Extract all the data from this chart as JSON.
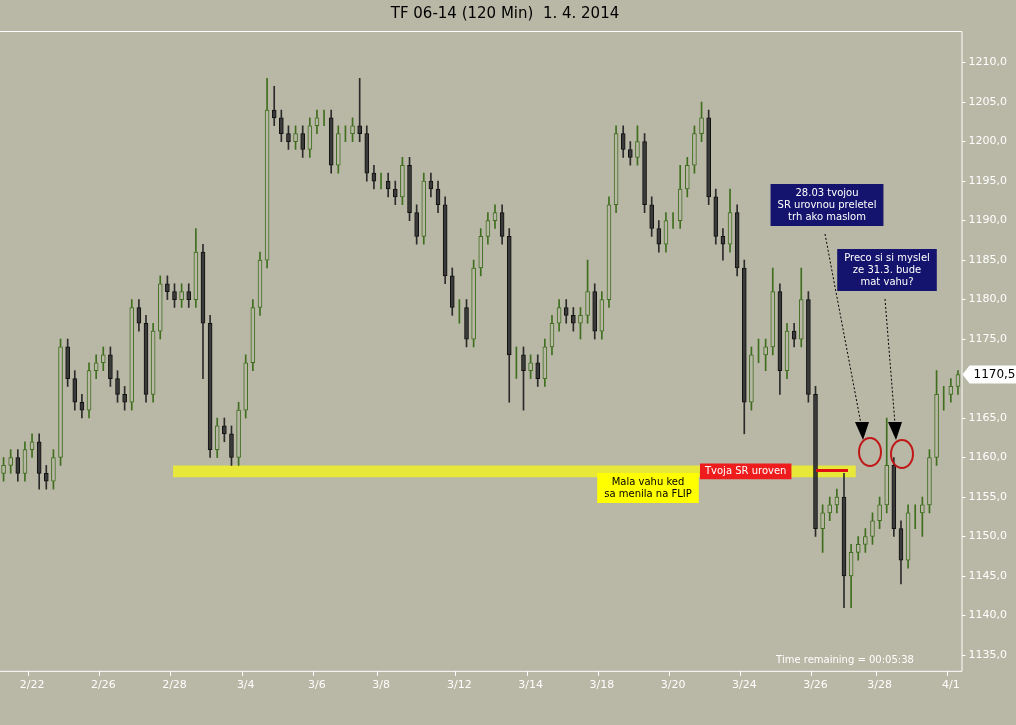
{
  "chart_data": {
    "type": "candlestick",
    "title": "TF 06-14 (120 Min)  1. 4. 2014",
    "categories": [
      null,
      null,
      null,
      null,
      "2/22",
      null,
      null,
      null,
      null,
      null,
      null,
      null,
      null,
      null,
      "2/26",
      null,
      null,
      null,
      null,
      null,
      null,
      null,
      null,
      null,
      "2/28",
      null,
      null,
      null,
      null,
      null,
      null,
      null,
      null,
      null,
      "3/4",
      null,
      null,
      null,
      null,
      null,
      null,
      null,
      null,
      null,
      "3/6",
      null,
      null,
      null,
      null,
      null,
      null,
      null,
      null,
      "3/8",
      null,
      null,
      null,
      null,
      null,
      null,
      null,
      null,
      null,
      null,
      "3/12",
      null,
      null,
      null,
      null,
      null,
      null,
      null,
      null,
      null,
      "3/14",
      null,
      null,
      null,
      null,
      null,
      null,
      null,
      null,
      null,
      "3/18",
      null,
      null,
      null,
      null,
      null,
      null,
      null,
      null,
      null,
      "3/20",
      null,
      null,
      null,
      null,
      null,
      null,
      null,
      null,
      null,
      "3/24",
      null,
      null,
      null,
      null,
      null,
      null,
      null,
      null,
      null,
      "3/26",
      null,
      null,
      null,
      null,
      null,
      null,
      null,
      null,
      "3/28",
      null,
      null,
      null,
      null,
      null,
      null,
      null,
      null,
      null,
      "4/1",
      null
    ],
    "ohlc": [
      [
        1158,
        1160,
        1157,
        1159
      ],
      [
        1159,
        1161,
        1158,
        1160
      ],
      [
        1160,
        1161,
        1157,
        1158
      ],
      [
        1158,
        1162,
        1157,
        1161
      ],
      [
        1161,
        1163,
        1160,
        1162
      ],
      [
        1162,
        1163,
        1156,
        1158
      ],
      [
        1158,
        1159,
        1156,
        1157
      ],
      [
        1157,
        1161,
        1156,
        1160
      ],
      [
        1160,
        1175,
        1159,
        1174
      ],
      [
        1174,
        1175,
        1169,
        1170
      ],
      [
        1170,
        1171,
        1166,
        1167
      ],
      [
        1167,
        1168,
        1165,
        1166
      ],
      [
        1166,
        1172,
        1165,
        1171
      ],
      [
        1171,
        1173,
        1170,
        1172
      ],
      [
        1172,
        1174,
        1171,
        1173
      ],
      [
        1173,
        1174,
        1169,
        1170
      ],
      [
        1170,
        1171,
        1167,
        1168
      ],
      [
        1168,
        1169,
        1166,
        1167
      ],
      [
        1167,
        1180,
        1166,
        1179
      ],
      [
        1179,
        1180,
        1176,
        1177
      ],
      [
        1177,
        1178,
        1167,
        1168
      ],
      [
        1168,
        1177,
        1167,
        1176
      ],
      [
        1176,
        1183,
        1175,
        1182
      ],
      [
        1182,
        1183,
        1180,
        1181
      ],
      [
        1181,
        1182,
        1179,
        1180
      ],
      [
        1180,
        1182,
        1179,
        1181
      ],
      [
        1181,
        1182,
        1179,
        1180
      ],
      [
        1180,
        1189,
        1179,
        1186
      ],
      [
        1186,
        1187,
        1170,
        1177
      ],
      [
        1177,
        1178,
        1160,
        1161
      ],
      [
        1161,
        1165,
        1160,
        1164
      ],
      [
        1164,
        1165,
        1162,
        1163
      ],
      [
        1163,
        1164,
        1159,
        1160
      ],
      [
        1160,
        1167,
        1159,
        1166
      ],
      [
        1166,
        1173,
        1165,
        1172
      ],
      [
        1172,
        1180,
        1171,
        1179
      ],
      [
        1179,
        1186,
        1178,
        1185
      ],
      [
        1185,
        1208,
        1184,
        1204
      ],
      [
        1204,
        1207,
        1202,
        1203
      ],
      [
        1203,
        1204,
        1200,
        1201
      ],
      [
        1201,
        1202,
        1199,
        1200
      ],
      [
        1200,
        1202,
        1199,
        1201
      ],
      [
        1201,
        1202,
        1198,
        1199
      ],
      [
        1199,
        1203,
        1198,
        1202
      ],
      [
        1202,
        1204,
        1201,
        1203
      ],
      [
        1203,
        1204,
        1202,
        1203
      ],
      [
        1203,
        1204,
        1196,
        1197
      ],
      [
        1197,
        1202,
        1196,
        1201
      ],
      [
        1201,
        1202,
        1200,
        1201
      ],
      [
        1201,
        1203,
        1200,
        1202
      ],
      [
        1202,
        1208,
        1200,
        1201
      ],
      [
        1201,
        1202,
        1195,
        1196
      ],
      [
        1196,
        1197,
        1194,
        1195
      ],
      [
        1195,
        1196,
        1194,
        1195
      ],
      [
        1195,
        1196,
        1193,
        1194
      ],
      [
        1194,
        1195,
        1192,
        1193
      ],
      [
        1193,
        1198,
        1192,
        1197
      ],
      [
        1197,
        1198,
        1190,
        1191
      ],
      [
        1191,
        1192,
        1187,
        1188
      ],
      [
        1188,
        1196,
        1187,
        1195
      ],
      [
        1195,
        1196,
        1193,
        1194
      ],
      [
        1194,
        1195,
        1191,
        1192
      ],
      [
        1192,
        1193,
        1182,
        1183
      ],
      [
        1183,
        1184,
        1178,
        1179
      ],
      [
        1179,
        1180,
        1177,
        1179
      ],
      [
        1179,
        1180,
        1174,
        1175
      ],
      [
        1175,
        1185,
        1174,
        1184
      ],
      [
        1184,
        1189,
        1183,
        1188
      ],
      [
        1188,
        1191,
        1187,
        1190
      ],
      [
        1190,
        1192,
        1189,
        1191
      ],
      [
        1191,
        1192,
        1187,
        1188
      ],
      [
        1188,
        1189,
        1167,
        1173
      ],
      [
        1173,
        1174,
        1170,
        1173
      ],
      [
        1173,
        1174,
        1166,
        1171
      ],
      [
        1171,
        1173,
        1170,
        1172
      ],
      [
        1172,
        1173,
        1169,
        1170
      ],
      [
        1170,
        1175,
        1169,
        1174
      ],
      [
        1174,
        1178,
        1173,
        1177
      ],
      [
        1177,
        1180,
        1176,
        1179
      ],
      [
        1179,
        1180,
        1177,
        1178
      ],
      [
        1178,
        1179,
        1176,
        1177
      ],
      [
        1177,
        1179,
        1175,
        1178
      ],
      [
        1178,
        1185,
        1177,
        1181
      ],
      [
        1181,
        1182,
        1175,
        1176
      ],
      [
        1176,
        1181,
        1175,
        1180
      ],
      [
        1180,
        1193,
        1179,
        1192
      ],
      [
        1192,
        1202,
        1191,
        1201
      ],
      [
        1201,
        1202,
        1198,
        1199
      ],
      [
        1199,
        1200,
        1197,
        1198
      ],
      [
        1198,
        1202,
        1197,
        1200
      ],
      [
        1200,
        1201,
        1191,
        1192
      ],
      [
        1192,
        1193,
        1188,
        1189
      ],
      [
        1189,
        1190,
        1186,
        1187
      ],
      [
        1187,
        1191,
        1186,
        1190
      ],
      [
        1190,
        1191,
        1189,
        1190
      ],
      [
        1190,
        1197,
        1189,
        1194
      ],
      [
        1194,
        1198,
        1193,
        1197
      ],
      [
        1197,
        1202,
        1196,
        1201
      ],
      [
        1201,
        1205,
        1200,
        1203
      ],
      [
        1203,
        1204,
        1192,
        1193
      ],
      [
        1193,
        1194,
        1187,
        1188
      ],
      [
        1188,
        1189,
        1185,
        1187
      ],
      [
        1187,
        1194,
        1186,
        1191
      ],
      [
        1191,
        1192,
        1183,
        1184
      ],
      [
        1184,
        1185,
        1163,
        1167
      ],
      [
        1167,
        1174,
        1166,
        1173
      ],
      [
        1173,
        1175,
        1172,
        1173
      ],
      [
        1173,
        1175,
        1171,
        1174
      ],
      [
        1174,
        1184,
        1173,
        1181
      ],
      [
        1181,
        1182,
        1168,
        1171
      ],
      [
        1171,
        1177,
        1170,
        1176
      ],
      [
        1176,
        1177,
        1174,
        1175
      ],
      [
        1175,
        1184,
        1174,
        1180
      ],
      [
        1180,
        1181,
        1167,
        1168
      ],
      [
        1168,
        1169,
        1150,
        1151
      ],
      [
        1151,
        1154,
        1148,
        1153
      ],
      [
        1153,
        1155,
        1152,
        1154
      ],
      [
        1154,
        1156,
        1153,
        1155
      ],
      [
        1155,
        1158,
        1141,
        1145
      ],
      [
        1145,
        1149,
        1141,
        1148
      ],
      [
        1148,
        1150,
        1147,
        1149
      ],
      [
        1149,
        1151,
        1148,
        1150
      ],
      [
        1150,
        1153,
        1149,
        1152
      ],
      [
        1152,
        1155,
        1151,
        1154
      ],
      [
        1154,
        1165,
        1153,
        1159
      ],
      [
        1159,
        1160,
        1150,
        1151
      ],
      [
        1151,
        1152,
        1144,
        1147
      ],
      [
        1147,
        1154,
        1146,
        1153
      ],
      [
        1153,
        1154,
        1151,
        1153
      ],
      [
        1153,
        1155,
        1150,
        1154
      ],
      [
        1154,
        1161,
        1153,
        1160
      ],
      [
        1160,
        1171,
        1159,
        1168
      ],
      [
        1168,
        1169,
        1166,
        1168
      ],
      [
        1168,
        1170,
        1167,
        1169
      ],
      [
        1169,
        1171,
        1168,
        1170.5
      ]
    ],
    "ylim": [
      1133,
      1214
    ],
    "yticks": [
      {
        "value": 1135,
        "label": "1135,0"
      },
      {
        "value": 1140,
        "label": "1140,0"
      },
      {
        "value": 1145,
        "label": "1145,0"
      },
      {
        "value": 1150,
        "label": "1150,0"
      },
      {
        "value": 1155,
        "label": "1155,0"
      },
      {
        "value": 1160,
        "label": "1160,0"
      },
      {
        "value": 1165,
        "label": "1165,0"
      },
      {
        "value": 1175,
        "label": "1175,0"
      },
      {
        "value": 1180,
        "label": "1180,0"
      },
      {
        "value": 1185,
        "label": "1185,0"
      },
      {
        "value": 1190,
        "label": "1190,0"
      },
      {
        "value": 1195,
        "label": "1195,0"
      },
      {
        "value": 1200,
        "label": "1200,0"
      },
      {
        "value": 1205,
        "label": "1205,0"
      },
      {
        "value": 1210,
        "label": "1210,0"
      }
    ],
    "bands": [
      {
        "axis": "y",
        "from": 1157.5,
        "to": 1159,
        "label": "Tvoja SR uroven",
        "color": "#e8e83a"
      }
    ],
    "annotations": [
      "Mala vahu ked\nsa menila na FLIP",
      "28.03 tvojou\nSR urovnou preletel\ntrh ako maslom",
      "Preco si si myslel\nze 31.3. bude\nmat vahu?",
      "Time remaining = 00:05:38",
      "1170,5"
    ],
    "grid": false,
    "legend": false
  }
}
